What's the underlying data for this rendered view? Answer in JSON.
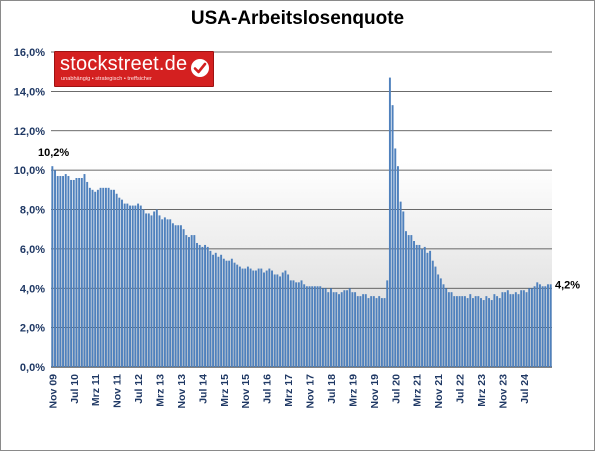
{
  "title": "USA-Arbeitslosenquote",
  "logo": {
    "main": "stockstreet.de",
    "tagline": "unabhängig • strategisch • treffsicher"
  },
  "annotations": {
    "start": "10,2%",
    "end": "4,2%"
  },
  "colors": {
    "bar": "#4f81bd",
    "bar_edge": "#385d8a",
    "plot_top": "#ffffff",
    "plot_bottom": "#d4d4d4",
    "grid": "#3a3a3a",
    "axis_label": "#1f3864",
    "logo": "#d42020"
  },
  "chart_data": {
    "type": "bar",
    "title": "USA-Arbeitslosenquote",
    "ylim": [
      0,
      16
    ],
    "y_ticks": [
      "0,0%",
      "2,0%",
      "4,0%",
      "6,0%",
      "8,0%",
      "10,0%",
      "12,0%",
      "14,0%",
      "16,0%"
    ],
    "grid": true,
    "x_tick_labels": [
      "Nov 09",
      "Jul 10",
      "Mrz 11",
      "Nov 11",
      "Jul 12",
      "Mrz 13",
      "Nov 13",
      "Jul 14",
      "Mrz 15",
      "Nov 15",
      "Jul 16",
      "Mrz 17",
      "Nov 17",
      "Jul 18",
      "Mrz 19",
      "Nov 19",
      "Jul 20",
      "Mrz 21",
      "Nov 21",
      "Jul 22",
      "Mrz 23",
      "Nov 23",
      "Jul 24"
    ],
    "values": [
      10.2,
      10.0,
      9.7,
      9.7,
      9.7,
      9.8,
      9.7,
      9.5,
      9.5,
      9.6,
      9.6,
      9.6,
      9.8,
      9.4,
      9.1,
      9.0,
      8.9,
      9.0,
      9.1,
      9.1,
      9.1,
      9.1,
      9.0,
      9.0,
      8.8,
      8.6,
      8.5,
      8.3,
      8.3,
      8.2,
      8.2,
      8.2,
      8.3,
      8.2,
      8.0,
      7.8,
      7.8,
      7.7,
      7.9,
      8.0,
      7.7,
      7.5,
      7.6,
      7.5,
      7.5,
      7.3,
      7.2,
      7.2,
      7.2,
      7.0,
      6.7,
      6.6,
      6.7,
      6.7,
      6.3,
      6.2,
      6.1,
      6.2,
      6.1,
      5.9,
      5.7,
      5.8,
      5.6,
      5.7,
      5.5,
      5.4,
      5.4,
      5.5,
      5.3,
      5.2,
      5.1,
      5.0,
      5.0,
      5.1,
      5.0,
      4.9,
      4.9,
      5.0,
      5.0,
      4.8,
      4.9,
      5.0,
      4.9,
      4.7,
      4.7,
      4.6,
      4.8,
      4.9,
      4.7,
      4.4,
      4.4,
      4.3,
      4.3,
      4.4,
      4.2,
      4.1,
      4.1,
      4.1,
      4.1,
      4.1,
      4.1,
      4.0,
      4.0,
      3.8,
      4.0,
      3.8,
      3.8,
      3.7,
      3.8,
      3.9,
      3.9,
      4.0,
      3.8,
      3.8,
      3.6,
      3.6,
      3.7,
      3.7,
      3.5,
      3.6,
      3.6,
      3.5,
      3.6,
      3.5,
      3.5,
      4.4,
      14.7,
      13.3,
      11.1,
      10.2,
      8.4,
      7.9,
      6.9,
      6.7,
      6.7,
      6.4,
      6.2,
      6.2,
      6.0,
      6.1,
      5.8,
      5.9,
      5.4,
      5.1,
      4.7,
      4.5,
      4.2,
      4.0,
      3.8,
      3.8,
      3.6,
      3.6,
      3.6,
      3.6,
      3.6,
      3.5,
      3.7,
      3.5,
      3.6,
      3.6,
      3.5,
      3.4,
      3.6,
      3.5,
      3.4,
      3.7,
      3.6,
      3.5,
      3.8,
      3.8,
      3.9,
      3.7,
      3.7,
      3.8,
      3.7,
      3.9,
      3.9,
      3.8,
      4.0,
      4.0,
      4.1,
      4.3,
      4.2,
      4.1,
      4.1,
      4.2,
      4.2
    ]
  }
}
